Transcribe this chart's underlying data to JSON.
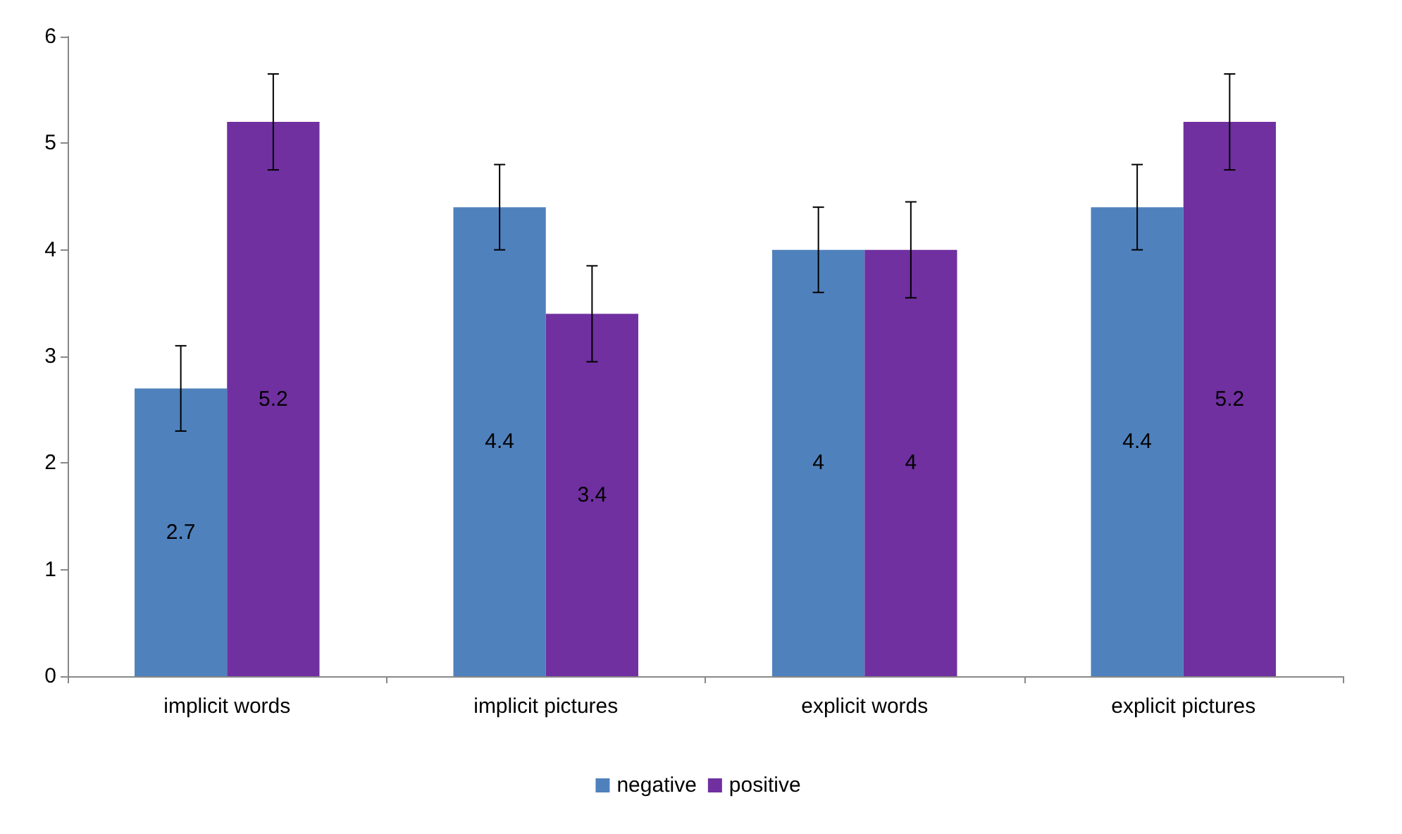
{
  "chart_data": {
    "type": "bar",
    "categories": [
      "implicit words",
      "implicit pictures",
      "explicit words",
      "explicit pictures"
    ],
    "series": [
      {
        "name": "negative",
        "color": "#4f81bd",
        "values": [
          2.7,
          4.4,
          4,
          4.4
        ],
        "errors": [
          0.4,
          0.4,
          0.4,
          0.4
        ]
      },
      {
        "name": "positive",
        "color": "#7030a0",
        "values": [
          5.2,
          3.4,
          4,
          5.2
        ],
        "errors": [
          0.45,
          0.45,
          0.45,
          0.45
        ]
      }
    ],
    "ylim": [
      0,
      6
    ],
    "yticks": [
      0,
      1,
      2,
      3,
      4,
      5,
      6
    ],
    "grid": false,
    "legend": "bottom",
    "data_labels": true
  }
}
